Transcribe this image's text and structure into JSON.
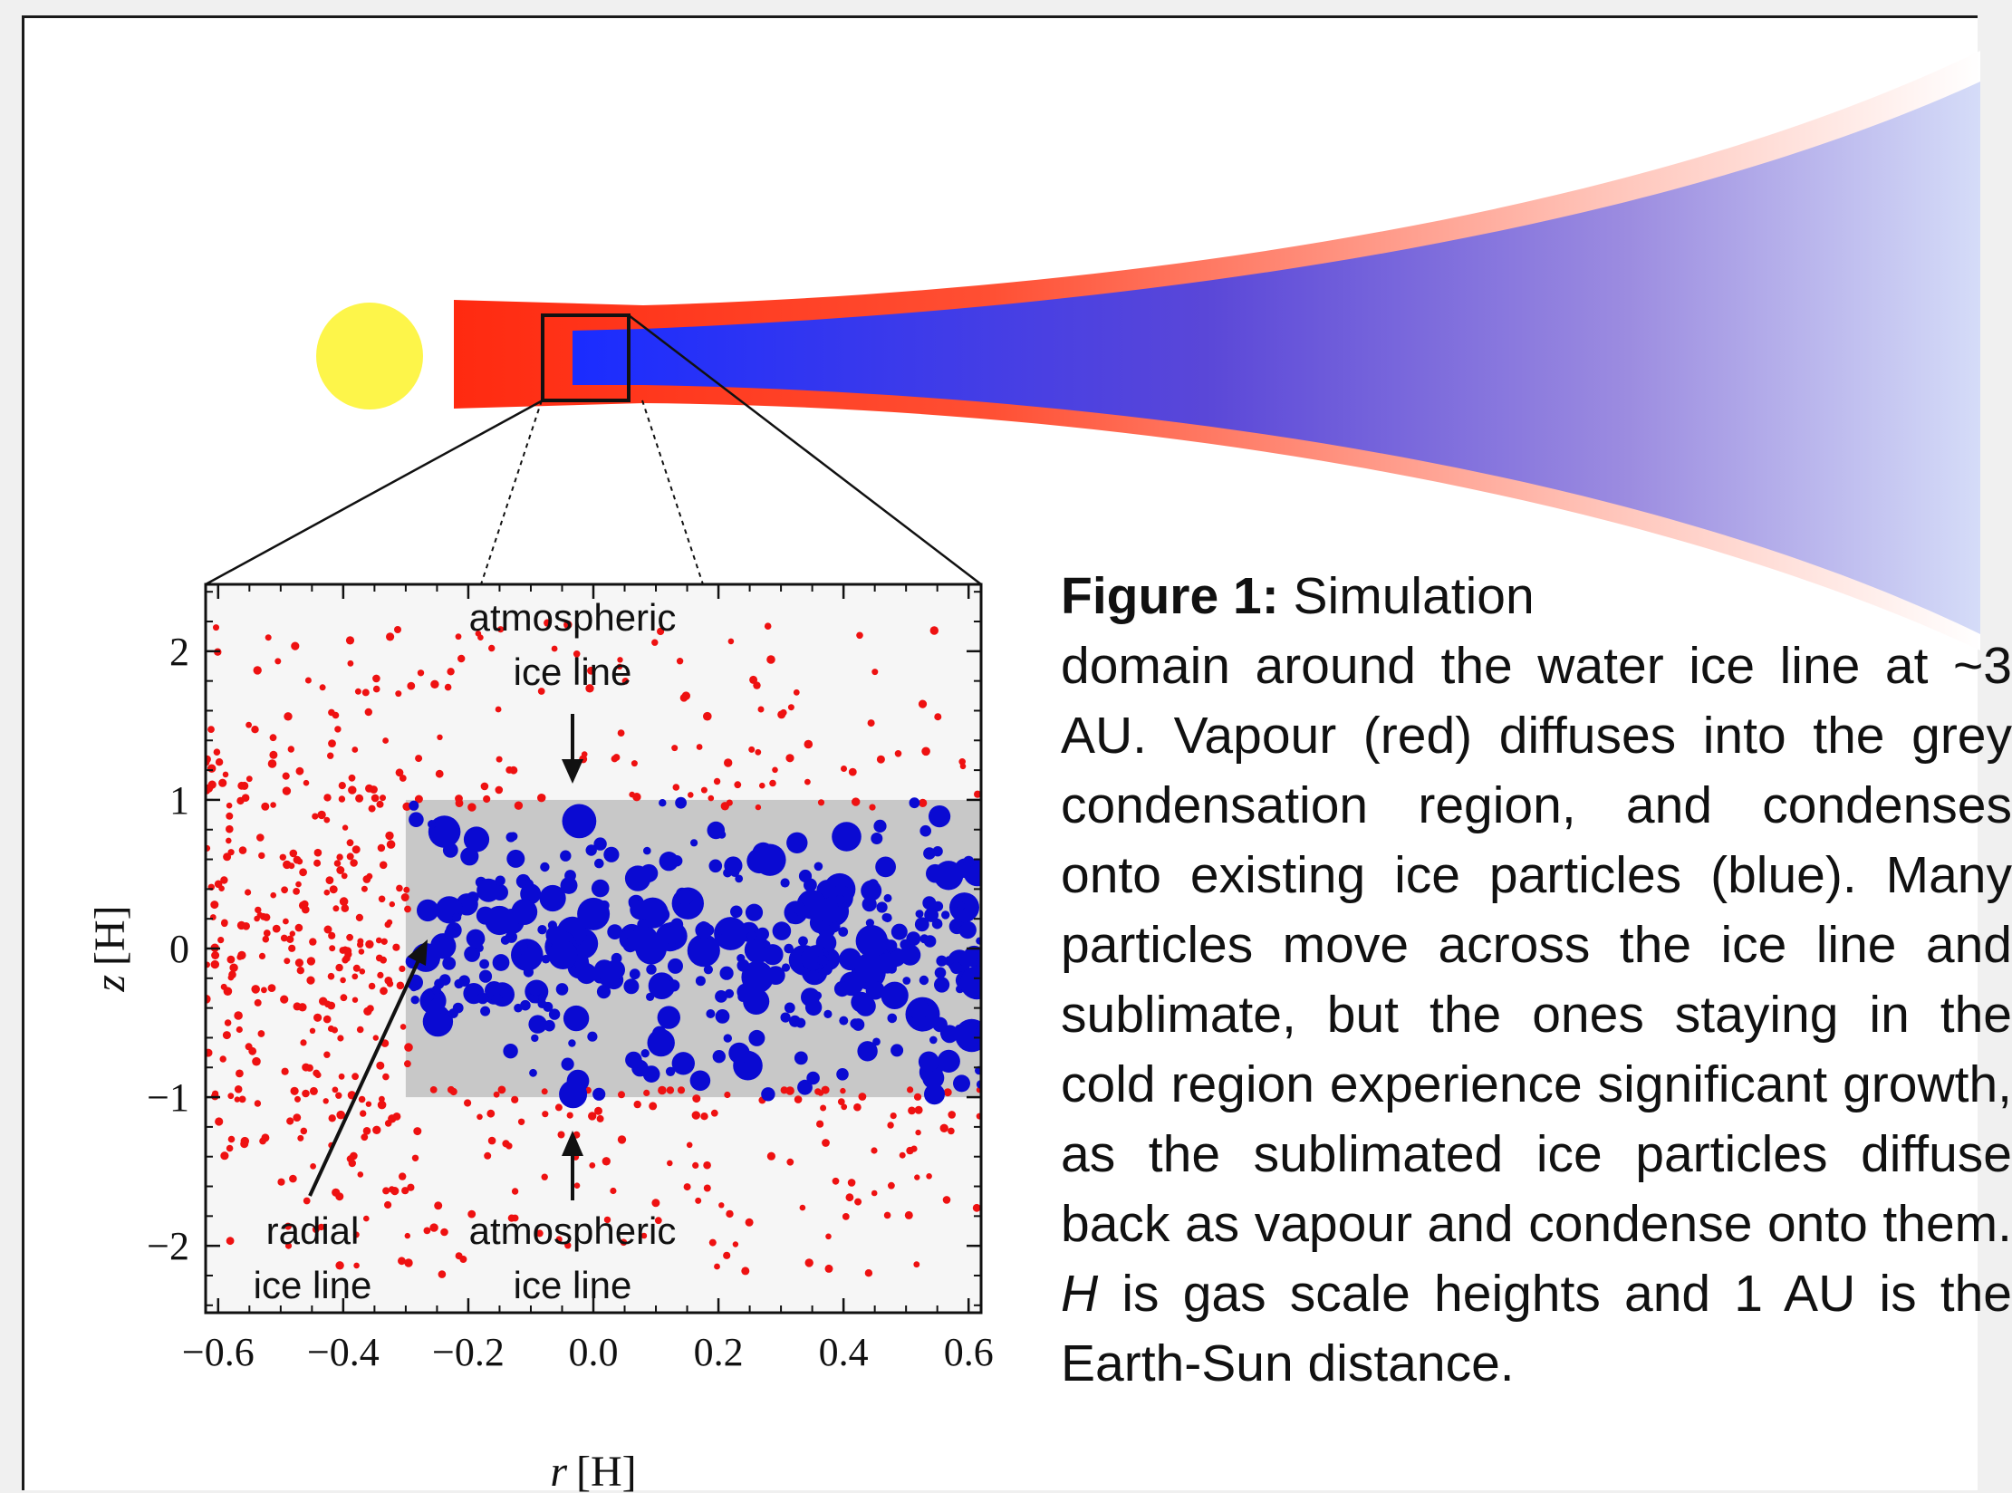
{
  "colors": {
    "star": "#fdf54a",
    "vapour": "#ff2a10",
    "vapour_fade": "#ffb7a9",
    "ice_start": "#1a2cff",
    "ice_mid": "#6a4fd8",
    "ice_end": "#d5dcf8",
    "condensation_region": "#c8c8c8",
    "plot_background": "#f6f6f6",
    "vapour_particles": "#ee1111",
    "ice_particles": "#0a0ad2"
  },
  "chart_data": {
    "type": "scatter",
    "xlabel_italic": "r",
    "xlabel_unit": "[H]",
    "ylabel_italic": "z",
    "ylabel_unit": "[H]",
    "xlim": [
      -0.62,
      0.62
    ],
    "ylim": [
      -2.45,
      2.45
    ],
    "xticks": [
      -0.6,
      -0.4,
      -0.2,
      0.0,
      0.2,
      0.4,
      0.6
    ],
    "xtick_labels": [
      "−0.6",
      "−0.4",
      "−0.2",
      "0.0",
      "0.2",
      "0.4",
      "0.6"
    ],
    "yticks": [
      2,
      1,
      0,
      -1,
      -2
    ],
    "ytick_labels": [
      "2",
      "1",
      "0",
      "−1",
      "−2"
    ],
    "condensation_region": {
      "x": [
        -0.3,
        0.62
      ],
      "z": [
        -1.0,
        1.0
      ]
    },
    "series": [
      {
        "label": "vapour particles",
        "color": "red",
        "count": 560,
        "x_range": [
          -0.62,
          0.62
        ],
        "z_range": [
          -2.2,
          2.2
        ]
      },
      {
        "label": "ice particles",
        "color": "blue",
        "count": 380,
        "x_range": [
          -0.3,
          0.62
        ],
        "z_range": [
          -1.0,
          1.0
        ]
      }
    ],
    "annotations": {
      "atmospheric_top": {
        "line1": "atmospheric",
        "line2": "ice line",
        "arrow_to": [
          -0.04,
          1.1
        ]
      },
      "atmospheric_bottom": {
        "line1": "atmospheric",
        "line2": "ice line",
        "arrow_to": [
          -0.04,
          -1.1
        ]
      },
      "radial": {
        "line1": "radial",
        "line2": "ice line",
        "arrow_to": [
          -0.31,
          0.05
        ]
      }
    }
  },
  "caption": {
    "label": "Figure 1:",
    "line1": " Simulation",
    "text_a": "domain around the water ice line at ~3 AU. Vapour (red) diffuses into the grey condensation region, and condenses onto existing ice particles (blue). Many particles move across the ice line and sublimate, but the ones staying in the cold region experience significant growth, as the sublimated ice particles diffuse back as vapour and condense onto them. ",
    "h_symbol": "H",
    "text_b": " is gas scale heights and 1 AU is the Earth-Sun distance."
  }
}
